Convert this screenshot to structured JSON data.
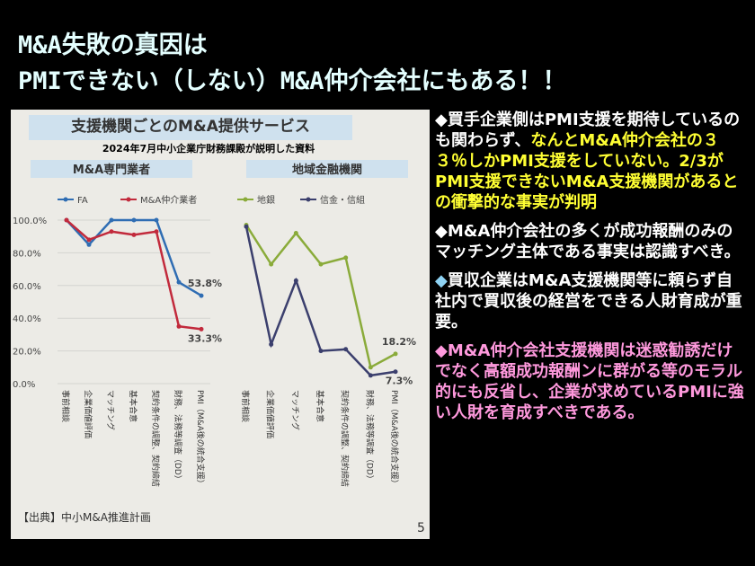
{
  "title_lines": [
    "M&A失敗の真因は",
    "PMIできない（しない）M&A仲介会社にもある！！"
  ],
  "figure": {
    "heading": "支援機関ごとのM&A提供サービス",
    "caption": "2024年7月中小企業庁財務課殿が説明した資料",
    "source": "【出典】中小M&A推進計画",
    "page_number": "5",
    "charts": [
      {
        "type": "line",
        "panel_title": "M&A専門業者",
        "categories": [
          "事前相談",
          "企業価値評価",
          "マッチング",
          "基本合意",
          "契約条件の調整、契約締結",
          "財務、法務等調査（DD）",
          "PMI（M&A後の統合支援）"
        ],
        "series": [
          {
            "name": "FA",
            "color": "#2f6db3",
            "values": [
              100,
              85,
              100,
              100,
              100,
              62,
              53.8
            ],
            "value_labels": [
              null,
              null,
              null,
              null,
              null,
              null,
              "53.8%"
            ]
          },
          {
            "name": "M&A仲介業者",
            "color": "#c22a3c",
            "values": [
              100,
              88,
              93,
              91,
              93,
              35,
              33.3
            ],
            "value_labels": [
              null,
              null,
              null,
              null,
              null,
              null,
              "33.3%"
            ]
          }
        ],
        "ylim": [
          0,
          100
        ],
        "yticks": [
          {
            "value": 0,
            "label": "0.0%"
          },
          {
            "value": 20,
            "label": "20.0%"
          },
          {
            "value": 40,
            "label": "40.0%"
          },
          {
            "value": 60,
            "label": "60.0%"
          },
          {
            "value": 80,
            "label": "80.0%"
          },
          {
            "value": 100,
            "label": "100.0%"
          }
        ]
      },
      {
        "type": "line",
        "panel_title": "地域金融機関",
        "categories": [
          "事前相談",
          "企業価値評価",
          "マッチング",
          "基本合意",
          "契約条件の調整、契約締結",
          "財務、法務等調査（DD）",
          "PMI（M&A後の統合支援）"
        ],
        "series": [
          {
            "name": "地銀",
            "color": "#8aab3a",
            "values": [
              97,
              73,
              92,
              73,
              77,
              10,
              18.2
            ],
            "value_labels": [
              null,
              null,
              null,
              null,
              null,
              null,
              "18.2%"
            ]
          },
          {
            "name": "信金・信組",
            "color": "#3b3f6d",
            "values": [
              96,
              24,
              63,
              20,
              21,
              5,
              7.3
            ],
            "value_labels": [
              null,
              null,
              null,
              null,
              null,
              null,
              "7.3%"
            ]
          }
        ],
        "ylim": [
          0,
          100
        ]
      }
    ]
  },
  "bullets": [
    {
      "marker": "◆",
      "marker_color": "#ffffff",
      "segments": [
        {
          "text": "買手企業側はPMI支援を期待しているのも関わらず、",
          "color": "#ffffff"
        },
        {
          "text": "なんとM&A仲介会社の３３％しかPMI支援をしていない。2/3がPMI支援できないM&A支援機関があるとの衝撃的な事実が判明",
          "color": "#ffff33"
        }
      ]
    },
    {
      "marker": "◆",
      "marker_color": "#ffffff",
      "segments": [
        {
          "text": "M&A仲介会社の多くが成功報酬のみのマッチング主体である事実は認識すべき。",
          "color": "#ffffff"
        }
      ]
    },
    {
      "marker": "◆",
      "marker_color": "#8fd3f4",
      "segments": [
        {
          "text": "買収企業はM&A支援機関等に頼らず自社内で買収後の経営をできる人財育成が重要。",
          "color": "#ffffff"
        }
      ]
    },
    {
      "marker": "◆",
      "marker_color": "#ff99dd",
      "segments": [
        {
          "text": "M&A仲介会社支援機関は迷惑勧誘だけでなく高額成功報酬ンに群がる等のモラル的にも反省し、企業が求めているPMIに強い人財を育成すべきである。",
          "color": "#ff99dd"
        }
      ]
    }
  ]
}
